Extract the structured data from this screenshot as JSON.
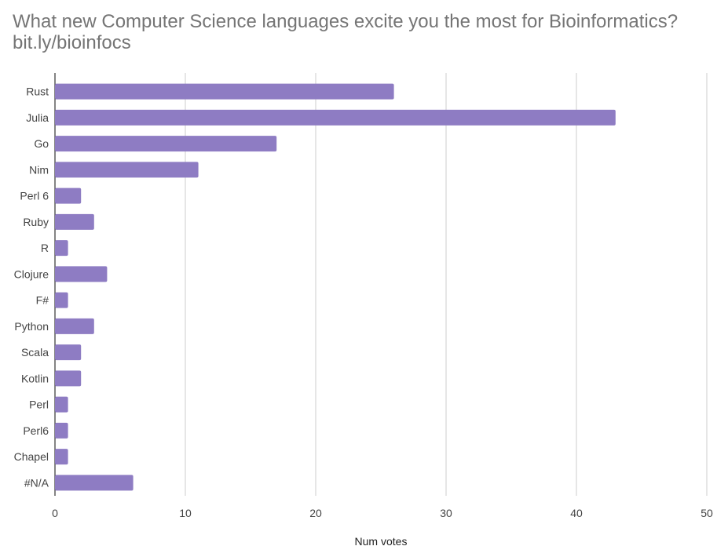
{
  "chart_data": {
    "type": "bar",
    "orientation": "horizontal",
    "title": "What new Computer Science languages excite you the most for Bioinformatics?\nbit.ly/bioinfocs",
    "xlabel": "Num votes",
    "ylabel": "",
    "categories": [
      "Rust",
      "Julia",
      "Go",
      "Nim",
      "Perl 6",
      "Ruby",
      "R",
      "Clojure",
      "F#",
      "Python",
      "Scala",
      "Kotlin",
      "Perl",
      "Perl6",
      "Chapel",
      "#N/A"
    ],
    "values": [
      26,
      43,
      17,
      11,
      2,
      3,
      1,
      4,
      1,
      3,
      2,
      2,
      1,
      1,
      1,
      6
    ],
    "xlim": [
      0,
      50
    ],
    "xticks": [
      0,
      10,
      20,
      30,
      40,
      50
    ],
    "grid": true,
    "legend": "none",
    "colors": {
      "bar": "#8e7cc3",
      "grid": "#cccccc",
      "title": "#757575"
    }
  }
}
